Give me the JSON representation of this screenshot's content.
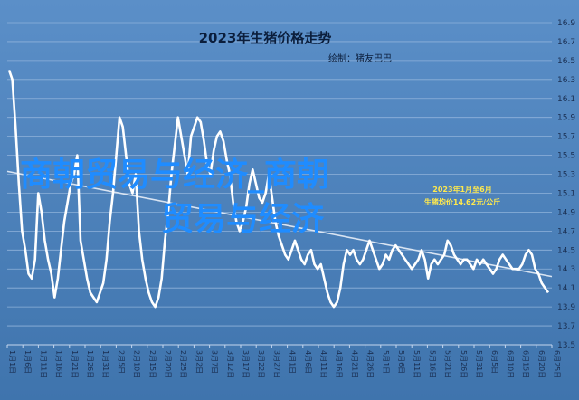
{
  "chart_data": {
    "type": "line",
    "title": "2023年生猪价格走势",
    "credit": "绘制：猪友巴巴",
    "ylim": [
      13.5,
      16.9
    ],
    "yticks": [
      "16.9",
      "16.7",
      "16.5",
      "16.3",
      "16.1",
      "15.9",
      "15.7",
      "15.5",
      "15.3",
      "15.1",
      "14.9",
      "14.7",
      "14.5",
      "14.3",
      "14.1",
      "13.9",
      "13.7",
      "13.5"
    ],
    "xticks": [
      "1月1日",
      "1月6日",
      "1月11日",
      "1月16日",
      "1月21日",
      "1月26日",
      "1月31日",
      "2月5日",
      "2月10日",
      "2月15日",
      "2月20日",
      "2月25日",
      "3月2日",
      "3月7日",
      "3月12日",
      "3月17日",
      "3月22日",
      "3月27日",
      "4月1日",
      "4月6日",
      "4月11日",
      "4月16日",
      "4月21日",
      "4月26日",
      "5月1日",
      "5月6日",
      "5月11日",
      "5月16日",
      "5月21日",
      "5月26日",
      "5月31日",
      "6月5日",
      "6月10日",
      "6月15日",
      "6月20日",
      "6月25日"
    ],
    "annotation": [
      "2023年1月至6月",
      "生猪均价14.62元/公斤"
    ],
    "watermark": [
      "商朝贸易与经济_商朝",
      "贸易与经济"
    ],
    "grid": true,
    "series": [
      {
        "values": [
          16.4,
          16.3,
          15.8,
          15.2,
          14.7,
          14.5,
          14.25,
          14.2,
          14.4,
          15.1,
          14.9,
          14.6,
          14.4,
          14.25,
          14.0,
          14.2,
          14.5,
          14.8,
          15.0,
          15.2,
          15.3,
          15.5,
          14.6,
          14.4,
          14.2,
          14.05,
          14.0,
          13.95,
          14.05,
          14.15,
          14.4,
          14.8,
          15.1,
          15.5,
          15.9,
          15.8,
          15.5,
          15.2,
          15.1,
          15.3,
          14.7,
          14.4,
          14.2,
          14.05,
          13.95,
          13.9,
          14.0,
          14.2,
          14.6,
          14.9,
          15.3,
          15.6,
          15.9,
          15.7,
          15.5,
          15.3,
          15.7,
          15.8,
          15.9,
          15.85,
          15.65,
          15.4,
          15.3,
          15.55,
          15.7,
          15.75,
          15.65,
          15.45,
          15.3,
          15.0,
          14.8,
          14.7,
          14.8,
          14.95,
          15.2,
          15.35,
          15.2,
          15.05,
          15.0,
          15.1,
          15.3,
          15.05,
          14.8,
          14.65,
          14.55,
          14.45,
          14.4,
          14.5,
          14.6,
          14.5,
          14.4,
          14.35,
          14.45,
          14.5,
          14.35,
          14.3,
          14.35,
          14.2,
          14.05,
          13.95,
          13.9,
          13.95,
          14.1,
          14.35,
          14.5,
          14.45,
          14.5,
          14.4,
          14.35,
          14.4,
          14.5,
          14.6,
          14.5,
          14.4,
          14.3,
          14.35,
          14.45,
          14.4,
          14.5,
          14.55,
          14.5,
          14.45,
          14.4,
          14.35,
          14.3,
          14.35,
          14.4,
          14.5,
          14.4,
          14.2,
          14.35,
          14.4,
          14.35,
          14.4,
          14.45,
          14.6,
          14.55,
          14.45,
          14.4,
          14.35,
          14.4,
          14.4,
          14.35,
          14.3,
          14.4,
          14.35,
          14.4,
          14.35,
          14.3,
          14.25,
          14.3,
          14.4,
          14.45,
          14.4,
          14.35,
          14.3,
          14.3,
          14.3,
          14.35,
          14.45,
          14.5,
          14.45,
          14.3,
          14.25,
          14.15,
          14.1,
          14.05
        ]
      }
    ]
  }
}
